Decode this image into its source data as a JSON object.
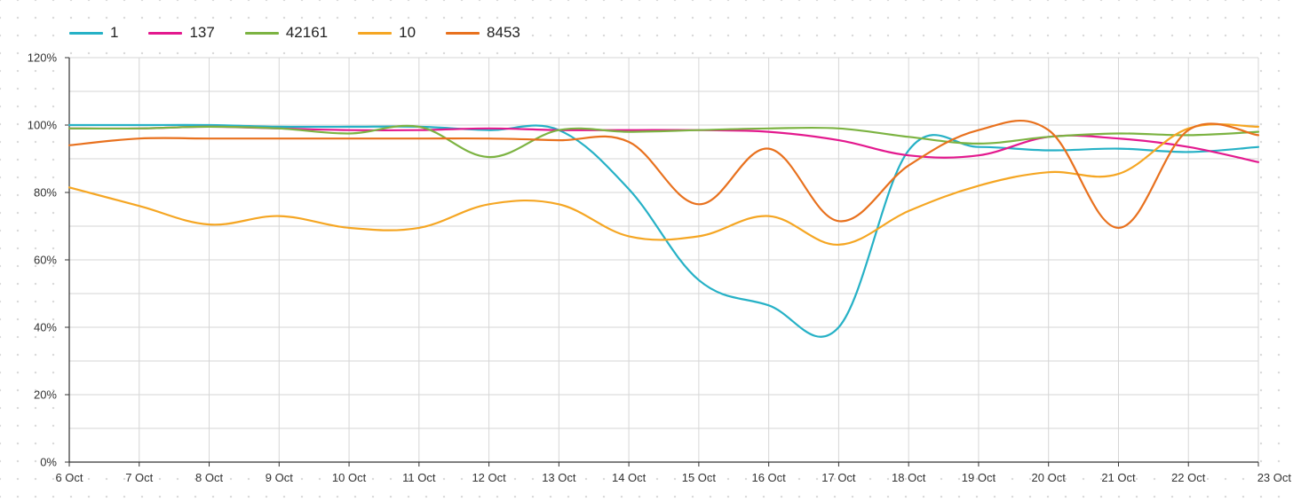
{
  "chart_data": {
    "type": "line",
    "title": "",
    "xlabel": "",
    "ylabel": "",
    "x": [
      "6 Oct",
      "7 Oct",
      "8 Oct",
      "9 Oct",
      "10 Oct",
      "11 Oct",
      "12 Oct",
      "13 Oct",
      "14 Oct",
      "15 Oct",
      "16 Oct",
      "17 Oct",
      "18 Oct",
      "19 Oct",
      "20 Oct",
      "21 Oct",
      "22 Oct",
      "23 Oct"
    ],
    "ylim": [
      0,
      120
    ],
    "yticks": [
      0,
      20,
      40,
      60,
      80,
      100,
      120
    ],
    "ytick_labels": [
      "0%",
      "20%",
      "40%",
      "60%",
      "80%",
      "100%",
      "120%"
    ],
    "grid": true,
    "legend_position": "top-left",
    "series": [
      {
        "name": "1",
        "color": "#26b1c6",
        "values": [
          100,
          100,
          100,
          99.5,
          99.5,
          99.5,
          98.5,
          98.5,
          81,
          54,
          46.5,
          40,
          92.5,
          93.5,
          92.5,
          93,
          92,
          93.5
        ]
      },
      {
        "name": "137",
        "color": "#e3198e",
        "values": [
          99,
          99,
          99.5,
          99,
          98.5,
          98.5,
          99,
          98.5,
          98.5,
          98.5,
          98,
          95.5,
          91,
          91,
          96.5,
          96,
          93.5,
          89
        ]
      },
      {
        "name": "42161",
        "color": "#7cb342",
        "values": [
          99,
          99,
          99.5,
          99,
          97.5,
          99.5,
          90.5,
          98.5,
          98,
          98.5,
          99,
          99,
          96.5,
          94.5,
          96.5,
          97.5,
          97,
          98
        ]
      },
      {
        "name": "10",
        "color": "#f5a623",
        "values": [
          81.5,
          76,
          70.5,
          73,
          69.5,
          69.5,
          76.5,
          76.5,
          67,
          67,
          73,
          64.5,
          74.5,
          82,
          86,
          85.5,
          99,
          99.5
        ]
      },
      {
        "name": "8453",
        "color": "#e8711e",
        "values": [
          94,
          96,
          96,
          96,
          96,
          96,
          96,
          95.5,
          95,
          76.5,
          93,
          71.5,
          88,
          98.5,
          98.5,
          69.5,
          98.5,
          97
        ]
      }
    ]
  }
}
